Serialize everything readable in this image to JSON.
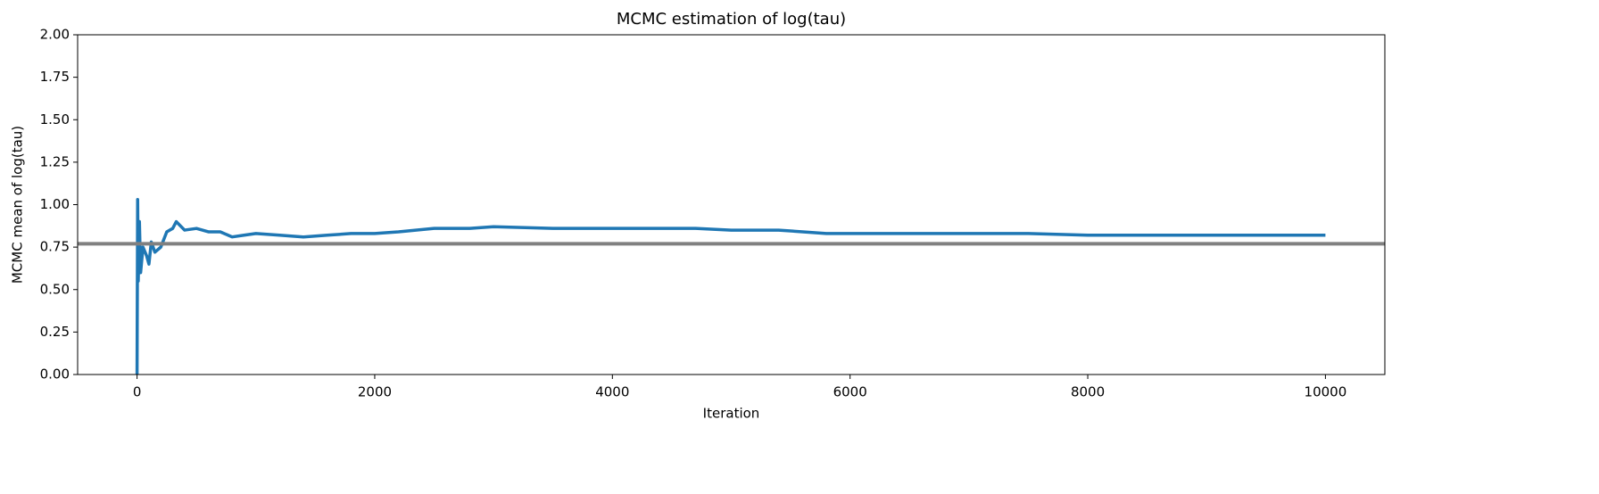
{
  "chart_data": {
    "type": "line",
    "title": "MCMC estimation of log(tau)",
    "x_label": "Iteration",
    "y_label": "MCMC mean of log(tau)",
    "x": [
      0,
      5,
      10,
      20,
      30,
      50,
      80,
      100,
      120,
      150,
      200,
      250,
      300,
      330,
      400,
      500,
      600,
      700,
      800,
      900,
      1000,
      1200,
      1400,
      1600,
      1800,
      2000,
      2200,
      2500,
      2800,
      3000,
      3500,
      4000,
      4500,
      4700,
      5000,
      5400,
      5800,
      6000,
      6500,
      7000,
      7500,
      8000,
      8500,
      9000,
      10000
    ],
    "series": [
      {
        "name": "MCMC mean",
        "color": "#1f77b4",
        "values": [
          0,
          1.03,
          0.55,
          0.9,
          0.6,
          0.75,
          0.7,
          0.65,
          0.78,
          0.72,
          0.75,
          0.84,
          0.86,
          0.9,
          0.85,
          0.86,
          0.84,
          0.84,
          0.81,
          0.82,
          0.83,
          0.82,
          0.81,
          0.82,
          0.83,
          0.83,
          0.84,
          0.86,
          0.86,
          0.87,
          0.86,
          0.86,
          0.86,
          0.86,
          0.85,
          0.85,
          0.83,
          0.83,
          0.83,
          0.83,
          0.83,
          0.82,
          0.82,
          0.82,
          0.82
        ]
      }
    ],
    "reference_line": {
      "y": 0.77,
      "color": "#808080"
    },
    "xlim": [
      -500,
      10500
    ],
    "xticks": [
      0,
      2000,
      4000,
      6000,
      8000,
      10000
    ],
    "ylim": [
      0,
      2
    ],
    "yticks": [
      {
        "value": 0,
        "label": "0.00"
      },
      {
        "value": 0.25,
        "label": "0.25"
      },
      {
        "value": 0.5,
        "label": "0.50"
      },
      {
        "value": 0.75,
        "label": "0.75"
      },
      {
        "value": 1,
        "label": "1.00"
      },
      {
        "value": 1.25,
        "label": "1.25"
      },
      {
        "value": 1.5,
        "label": "1.50"
      },
      {
        "value": 1.75,
        "label": "1.75"
      },
      {
        "value": 2,
        "label": "2.00"
      }
    ],
    "grid": false
  }
}
